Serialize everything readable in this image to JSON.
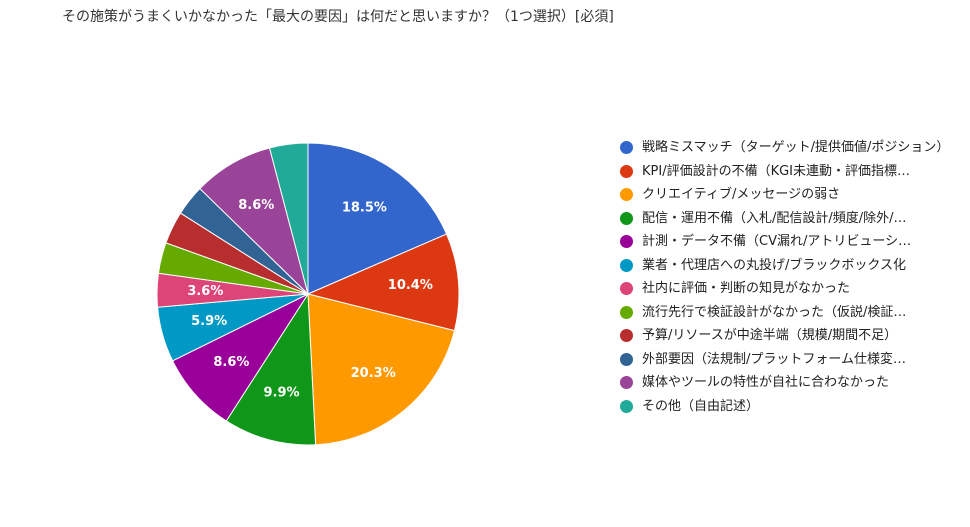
{
  "chart_data": {
    "type": "pie",
    "title": "その施策がうまくいかなかった「最大の要因」は何だと思いますか？（1つ選択）[必須]",
    "categories": [
      "戦略ミスマッチ（ターゲット/提供価値/ポジション）",
      "KPI/評価設計の不備（KGI未連動・評価指標…",
      "クリエイティブ/メッセージの弱さ",
      "配信・運用不備（入札/配信設計/頻度/除外/…",
      "計測・データ不備（CV漏れ/アトリビューシ…",
      "業者・代理店への丸投げ/ブラックボックス化",
      "社内に評価・判断の知見がなかった",
      "流行先行で検証設計がなかった（仮説/検証…",
      "予算/リソースが中途半端（規模/期間不足）",
      "外部要因（法規制/プラットフォーム仕様変…",
      "媒体やツールの特性が自社に合わなかった",
      "その他（自由記述）"
    ],
    "values": [
      18.5,
      10.4,
      20.3,
      9.9,
      8.6,
      5.9,
      3.6,
      3.3,
      3.5,
      3.3,
      8.6,
      4.1
    ],
    "value_labels": [
      "18.5%",
      "10.4%",
      "20.3%",
      "9.9%",
      "8.6%",
      "5.9%",
      "3.6%",
      null,
      null,
      null,
      "8.6%",
      null
    ],
    "colors": [
      "#3366cc",
      "#dc3912",
      "#ff9900",
      "#109618",
      "#990099",
      "#0099c6",
      "#dd4477",
      "#66aa00",
      "#b82e2e",
      "#316395",
      "#994499",
      "#22aa99"
    ],
    "legend": "right"
  }
}
